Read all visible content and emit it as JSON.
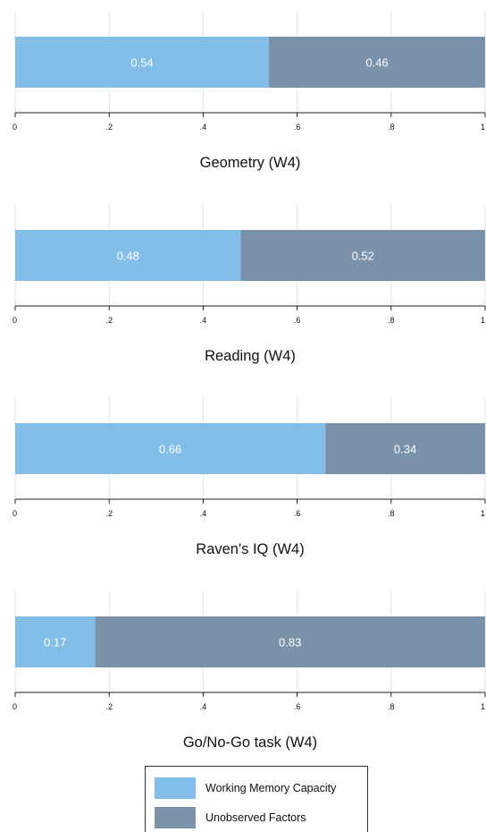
{
  "colors": {
    "working_memory": "#82bee8",
    "unobserved": "#7a91aa",
    "grid": "#e6e6e6",
    "axis": "#222222",
    "bar_label": "#ffffff"
  },
  "legend": {
    "placement": "bottom-center",
    "items": [
      {
        "label": "Working Memory Capacity",
        "color": "#82bee8"
      },
      {
        "label": "Unobserved Factors",
        "color": "#7a91aa"
      }
    ]
  },
  "chart_data": [
    {
      "type": "bar",
      "orientation": "horizontal-stacked",
      "title": "Geometry (W4)",
      "series": [
        {
          "name": "Working Memory Capacity",
          "value": 0.54,
          "label": "0.54"
        },
        {
          "name": "Unobserved Factors",
          "value": 0.46,
          "label": "0.46"
        }
      ],
      "xlim": [
        0,
        1
      ],
      "xticks": [
        "0",
        ".2",
        ".4",
        ".6",
        ".8",
        "1"
      ],
      "grid": true
    },
    {
      "type": "bar",
      "orientation": "horizontal-stacked",
      "title": "Reading (W4)",
      "series": [
        {
          "name": "Working Memory Capacity",
          "value": 0.48,
          "label": "0.48"
        },
        {
          "name": "Unobserved Factors",
          "value": 0.52,
          "label": "0.52"
        }
      ],
      "xlim": [
        0,
        1
      ],
      "xticks": [
        "0",
        ".2",
        ".4",
        ".6",
        ".8",
        "1"
      ],
      "grid": true
    },
    {
      "type": "bar",
      "orientation": "horizontal-stacked",
      "title": "Raven's IQ (W4)",
      "series": [
        {
          "name": "Working Memory Capacity",
          "value": 0.66,
          "label": "0.66"
        },
        {
          "name": "Unobserved Factors",
          "value": 0.34,
          "label": "0.34"
        }
      ],
      "xlim": [
        0,
        1
      ],
      "xticks": [
        "0",
        ".2",
        ".4",
        ".6",
        ".8",
        "1"
      ],
      "grid": true
    },
    {
      "type": "bar",
      "orientation": "horizontal-stacked",
      "title": "Go/No-Go task (W4)",
      "series": [
        {
          "name": "Working Memory Capacity",
          "value": 0.17,
          "label": "0.17"
        },
        {
          "name": "Unobserved Factors",
          "value": 0.83,
          "label": "0.83"
        }
      ],
      "xlim": [
        0,
        1
      ],
      "xticks": [
        "0",
        ".2",
        ".4",
        ".6",
        ".8",
        "1"
      ],
      "grid": true
    }
  ]
}
